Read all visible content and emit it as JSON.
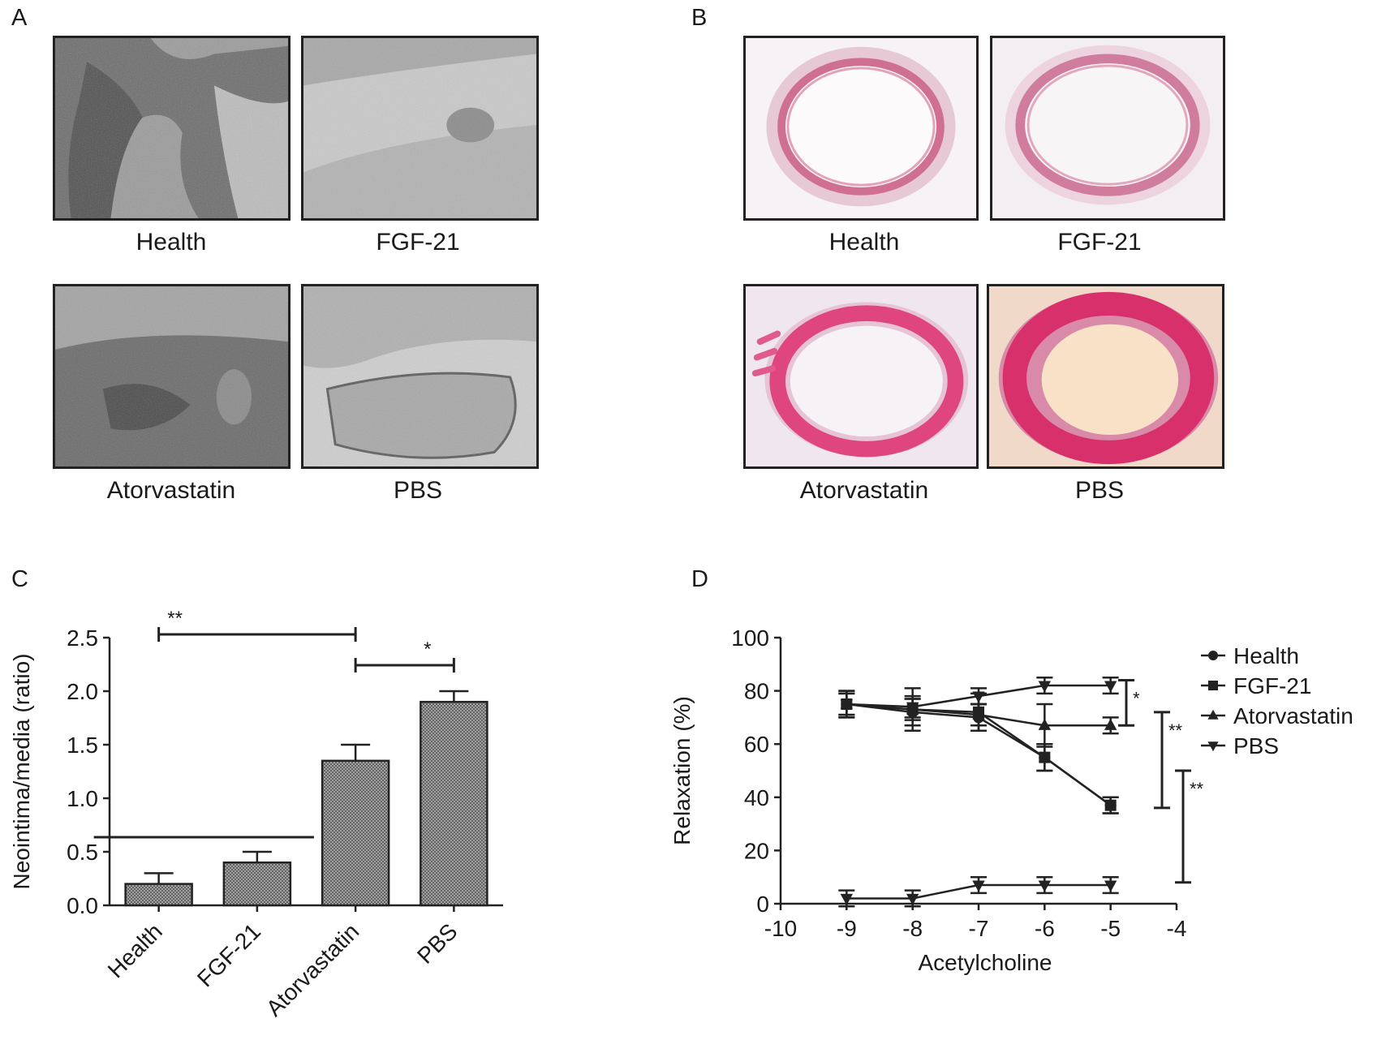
{
  "panels": {
    "a": {
      "letter": "A",
      "images": [
        {
          "label": "Health",
          "style": "tem-dark"
        },
        {
          "label": "FGF-21",
          "style": "tem-light"
        },
        {
          "label": "Atorvastatin",
          "style": "tem-dark2"
        },
        {
          "label": "PBS",
          "style": "tem-mixed"
        }
      ]
    },
    "b": {
      "letter": "B",
      "images": [
        {
          "label": "Health",
          "style": "he-thin"
        },
        {
          "label": "FGF-21",
          "style": "he-thin2"
        },
        {
          "label": "Atorvastatin",
          "style": "he-thick"
        },
        {
          "label": "PBS",
          "style": "he-thicker"
        }
      ]
    },
    "c": {
      "letter": "C"
    },
    "d": {
      "letter": "D"
    }
  },
  "chart_data": [
    {
      "type": "bar",
      "panel": "C",
      "categories": [
        "Health",
        "FGF-21",
        "Atorvastatin",
        "PBS"
      ],
      "values": [
        0.2,
        0.4,
        1.35,
        1.9
      ],
      "errors": [
        0.1,
        0.1,
        0.15,
        0.1
      ],
      "ylabel": "Neointima/media (ratio)",
      "xlabel": "",
      "ylim": [
        0,
        2.5
      ],
      "yticks": [
        "0.0",
        "0.5",
        "1.0",
        "1.5",
        "2.0",
        "2.5"
      ],
      "significance": [
        {
          "from": "Health",
          "to": "Atorvastatin",
          "label": "**"
        },
        {
          "from": "Atorvastatin",
          "to": "PBS",
          "label": "*"
        }
      ],
      "group_line": [
        "Health",
        "FGF-21"
      ],
      "bar_fill": "#b5b5b5"
    },
    {
      "type": "line",
      "panel": "D",
      "x": [
        -9,
        -8,
        -7,
        -6,
        -5
      ],
      "series": [
        {
          "name": "Health",
          "marker": "circle",
          "values": [
            75,
            72,
            70,
            55,
            37
          ],
          "errors": [
            4,
            5,
            5,
            5,
            3
          ]
        },
        {
          "name": "FGF-21",
          "marker": "square",
          "values": [
            75,
            73,
            72,
            55,
            37
          ],
          "errors": [
            5,
            8,
            7,
            5,
            3
          ]
        },
        {
          "name": "Atorvastatin",
          "marker": "triangle-up",
          "values": [
            75,
            73,
            71,
            67,
            67
          ],
          "errors": [
            5,
            4,
            4,
            8,
            3
          ]
        },
        {
          "name": "PBS",
          "marker": "triangle-down",
          "values": [
            75,
            74,
            78,
            82,
            82
          ],
          "errors": [
            4,
            4,
            3,
            3,
            3
          ]
        },
        {
          "name": "",
          "marker": "triangle-down",
          "values": [
            2,
            2,
            7,
            7,
            7
          ],
          "errors": [
            3,
            3,
            3,
            3,
            3
          ]
        }
      ],
      "xlabel": "Acetylcholine",
      "ylabel": "Relaxation (%)",
      "xlim": [
        -10,
        -4
      ],
      "ylim": [
        0,
        100
      ],
      "xticks": [
        "-10",
        "-9",
        "-8",
        "-7",
        "-6",
        "-5",
        "-4"
      ],
      "yticks": [
        "0",
        "20",
        "40",
        "60",
        "80",
        "100"
      ],
      "significance": [
        {
          "label": "*",
          "y_range": [
            67,
            84
          ]
        },
        {
          "label": "**",
          "y_range": [
            36,
            72
          ]
        },
        {
          "label": "**",
          "y_range": [
            8,
            50
          ]
        }
      ],
      "legend": "right"
    }
  ]
}
